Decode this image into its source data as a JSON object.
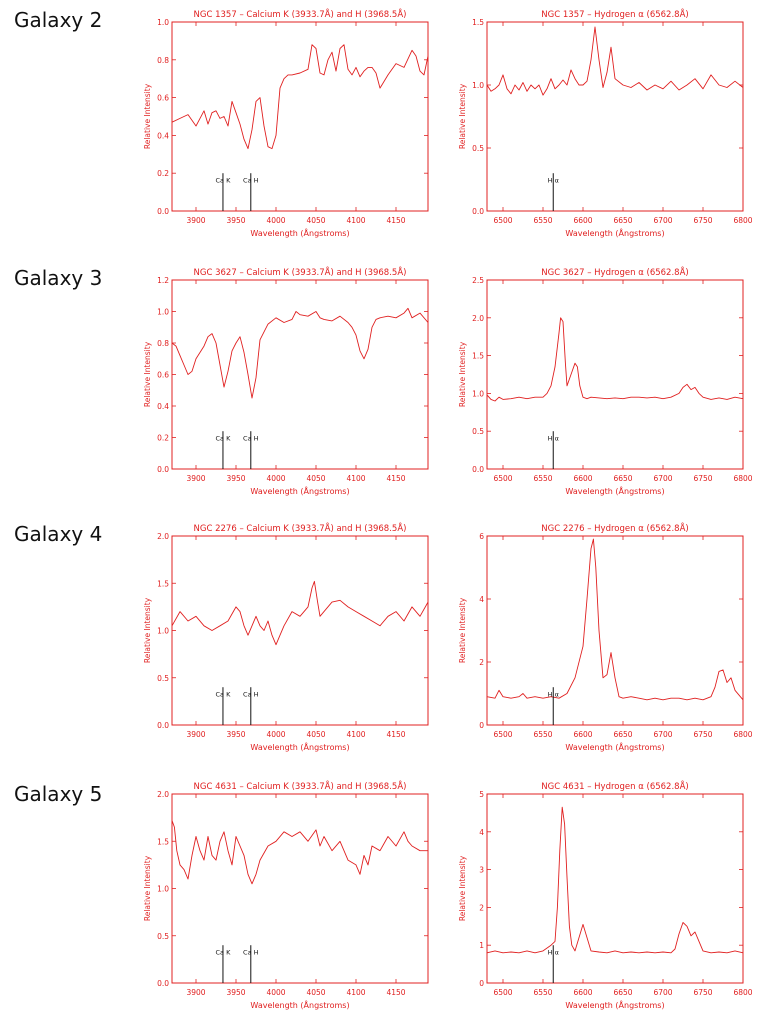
{
  "colors": {
    "spectrum": "#e02020",
    "marker": "#111111",
    "axis": "#e02020",
    "label": "#111111"
  },
  "rows": [
    {
      "galaxy_label": "Galaxy 2"
    },
    {
      "galaxy_label": "Galaxy 3"
    },
    {
      "galaxy_label": "Galaxy 4"
    },
    {
      "galaxy_label": "Galaxy 5"
    }
  ],
  "chart_data": [
    {
      "type": "line",
      "panel": "row1-left",
      "title": "NGC 1357 – Calcium K (3933.7Å) and H (3968.5Å)",
      "xlabel": "Wavelength (Ångstroms)",
      "ylabel": "Relative Intensity",
      "xlim": [
        3870,
        4190
      ],
      "ylim": [
        0.0,
        1.0
      ],
      "xticks": [
        3900,
        3950,
        4000,
        4050,
        4100,
        4150
      ],
      "yticks": [
        0.0,
        0.2,
        0.4,
        0.6,
        0.8,
        1.0
      ],
      "markers": [
        {
          "label": "Ca K",
          "x": 3933.7
        },
        {
          "label": "Ca H",
          "x": 3968.5
        }
      ],
      "series": [
        {
          "x": [
            3870,
            3880,
            3890,
            3900,
            3905,
            3910,
            3915,
            3920,
            3925,
            3930,
            3935,
            3940,
            3945,
            3950,
            3955,
            3960,
            3965,
            3970,
            3975,
            3980,
            3985,
            3990,
            3995,
            4000,
            4005,
            4010,
            4015,
            4020,
            4030,
            4040,
            4045,
            4050,
            4055,
            4060,
            4065,
            4070,
            4075,
            4080,
            4085,
            4090,
            4095,
            4100,
            4105,
            4110,
            4115,
            4120,
            4125,
            4130,
            4140,
            4150,
            4160,
            4170,
            4175,
            4180,
            4185,
            4190
          ],
          "y": [
            0.47,
            0.49,
            0.51,
            0.45,
            0.49,
            0.53,
            0.46,
            0.52,
            0.53,
            0.49,
            0.5,
            0.45,
            0.58,
            0.52,
            0.46,
            0.38,
            0.33,
            0.43,
            0.58,
            0.6,
            0.45,
            0.34,
            0.33,
            0.4,
            0.65,
            0.7,
            0.72,
            0.72,
            0.73,
            0.75,
            0.88,
            0.86,
            0.73,
            0.72,
            0.8,
            0.84,
            0.74,
            0.86,
            0.88,
            0.75,
            0.72,
            0.76,
            0.71,
            0.74,
            0.76,
            0.76,
            0.73,
            0.65,
            0.72,
            0.78,
            0.76,
            0.85,
            0.82,
            0.74,
            0.72,
            0.82
          ]
        }
      ]
    },
    {
      "type": "line",
      "panel": "row1-right",
      "title": "NGC 1357 – Hydrogen α (6562.8Å)",
      "xlabel": "Wavelength (Ångstroms)",
      "ylabel": "Relative Intensity",
      "xlim": [
        6480,
        6800
      ],
      "ylim": [
        0.0,
        1.5
      ],
      "xticks": [
        6500,
        6550,
        6600,
        6650,
        6700,
        6750,
        6800
      ],
      "yticks": [
        0.0,
        0.5,
        1.0,
        1.5
      ],
      "markers": [
        {
          "label": "H α",
          "x": 6562.8
        }
      ],
      "series": [
        {
          "x": [
            6480,
            6485,
            6490,
            6495,
            6500,
            6505,
            6510,
            6515,
            6520,
            6525,
            6530,
            6535,
            6540,
            6545,
            6550,
            6555,
            6560,
            6565,
            6570,
            6575,
            6580,
            6585,
            6590,
            6595,
            6600,
            6605,
            6610,
            6615,
            6620,
            6625,
            6630,
            6635,
            6640,
            6650,
            6660,
            6670,
            6680,
            6690,
            6700,
            6710,
            6720,
            6730,
            6740,
            6750,
            6760,
            6770,
            6780,
            6790,
            6800
          ],
          "y": [
            1.0,
            0.95,
            0.97,
            1.0,
            1.08,
            0.97,
            0.93,
            1.0,
            0.96,
            1.02,
            0.95,
            1.0,
            0.97,
            1.0,
            0.92,
            0.97,
            1.05,
            0.97,
            1.0,
            1.04,
            1.0,
            1.12,
            1.05,
            1.0,
            1.0,
            1.03,
            1.2,
            1.46,
            1.2,
            0.98,
            1.1,
            1.3,
            1.05,
            1.0,
            0.98,
            1.02,
            0.96,
            1.0,
            0.97,
            1.03,
            0.96,
            1.0,
            1.05,
            0.97,
            1.08,
            1.0,
            0.98,
            1.03,
            0.98
          ]
        }
      ]
    },
    {
      "type": "line",
      "panel": "row2-left",
      "title": "NGC 3627 – Calcium K (3933.7Å) and H (3968.5Å)",
      "xlabel": "Wavelength (Ångstroms)",
      "ylabel": "Relative Intensity",
      "xlim": [
        3870,
        4190
      ],
      "ylim": [
        0.0,
        1.2
      ],
      "xticks": [
        3900,
        3950,
        4000,
        4050,
        4100,
        4150
      ],
      "yticks": [
        0.0,
        0.2,
        0.4,
        0.6,
        0.8,
        1.0,
        1.2
      ],
      "markers": [
        {
          "label": "Ca K",
          "x": 3933.7
        },
        {
          "label": "Ca H",
          "x": 3968.5
        }
      ],
      "series": [
        {
          "x": [
            3870,
            3875,
            3880,
            3885,
            3890,
            3895,
            3900,
            3910,
            3915,
            3920,
            3925,
            3930,
            3935,
            3940,
            3945,
            3950,
            3955,
            3960,
            3965,
            3970,
            3975,
            3980,
            3990,
            4000,
            4010,
            4020,
            4025,
            4030,
            4040,
            4050,
            4055,
            4060,
            4070,
            4080,
            4090,
            4095,
            4100,
            4105,
            4110,
            4115,
            4120,
            4125,
            4130,
            4140,
            4150,
            4160,
            4165,
            4170,
            4180,
            4190
          ],
          "y": [
            0.8,
            0.78,
            0.72,
            0.66,
            0.6,
            0.62,
            0.7,
            0.78,
            0.84,
            0.86,
            0.8,
            0.66,
            0.52,
            0.62,
            0.75,
            0.8,
            0.84,
            0.74,
            0.6,
            0.45,
            0.58,
            0.82,
            0.92,
            0.96,
            0.93,
            0.95,
            1.0,
            0.98,
            0.97,
            1.0,
            0.96,
            0.95,
            0.94,
            0.97,
            0.93,
            0.9,
            0.85,
            0.75,
            0.7,
            0.76,
            0.9,
            0.95,
            0.96,
            0.97,
            0.96,
            0.99,
            1.02,
            0.96,
            0.99,
            0.93
          ]
        }
      ]
    },
    {
      "type": "line",
      "panel": "row2-right",
      "title": "NGC 3627 – Hydrogen α (6562.8Å)",
      "xlabel": "Wavelength (Ångstroms)",
      "ylabel": "Relative Intensity",
      "xlim": [
        6480,
        6800
      ],
      "ylim": [
        0.0,
        2.5
      ],
      "xticks": [
        6500,
        6550,
        6600,
        6650,
        6700,
        6750,
        6800
      ],
      "yticks": [
        0.0,
        0.5,
        1.0,
        1.5,
        2.0,
        2.5
      ],
      "markers": [
        {
          "label": "H α",
          "x": 6562.8
        }
      ],
      "series": [
        {
          "x": [
            6480,
            6485,
            6490,
            6495,
            6500,
            6510,
            6520,
            6530,
            6540,
            6550,
            6555,
            6560,
            6565,
            6570,
            6572,
            6575,
            6578,
            6580,
            6585,
            6590,
            6593,
            6596,
            6600,
            6605,
            6610,
            6620,
            6630,
            6640,
            6650,
            6660,
            6670,
            6680,
            6690,
            6700,
            6710,
            6720,
            6725,
            6730,
            6735,
            6740,
            6745,
            6750,
            6760,
            6770,
            6780,
            6790,
            6800
          ],
          "y": [
            0.98,
            0.92,
            0.9,
            0.95,
            0.92,
            0.93,
            0.95,
            0.93,
            0.95,
            0.95,
            1.0,
            1.1,
            1.35,
            1.8,
            2.0,
            1.95,
            1.4,
            1.1,
            1.25,
            1.4,
            1.35,
            1.1,
            0.95,
            0.93,
            0.95,
            0.94,
            0.93,
            0.94,
            0.93,
            0.95,
            0.95,
            0.94,
            0.95,
            0.93,
            0.95,
            1.0,
            1.08,
            1.12,
            1.05,
            1.08,
            1.0,
            0.95,
            0.92,
            0.94,
            0.92,
            0.95,
            0.93
          ]
        }
      ]
    },
    {
      "type": "line",
      "panel": "row3-left",
      "title": "NGC 2276 – Calcium K (3933.7Å) and H (3968.5Å)",
      "xlabel": "Wavelength (Ångstroms)",
      "ylabel": "Relative Intensity",
      "xlim": [
        3870,
        4190
      ],
      "ylim": [
        0.0,
        2.0
      ],
      "xticks": [
        3900,
        3950,
        4000,
        4050,
        4100,
        4150
      ],
      "yticks": [
        0.0,
        0.5,
        1.0,
        1.5,
        2.0
      ],
      "markers": [
        {
          "label": "Ca K",
          "x": 3933.7
        },
        {
          "label": "Ca H",
          "x": 3968.5
        }
      ],
      "series": [
        {
          "x": [
            3870,
            3880,
            3890,
            3900,
            3910,
            3920,
            3930,
            3940,
            3950,
            3955,
            3960,
            3965,
            3970,
            3975,
            3980,
            3985,
            3990,
            3995,
            4000,
            4005,
            4010,
            4020,
            4030,
            4040,
            4045,
            4048,
            4052,
            4055,
            4060,
            4070,
            4080,
            4090,
            4100,
            4110,
            4120,
            4130,
            4140,
            4150,
            4160,
            4170,
            4180,
            4190
          ],
          "y": [
            1.05,
            1.2,
            1.1,
            1.15,
            1.05,
            1.0,
            1.05,
            1.1,
            1.25,
            1.2,
            1.05,
            0.95,
            1.05,
            1.15,
            1.05,
            1.0,
            1.1,
            0.95,
            0.85,
            0.95,
            1.05,
            1.2,
            1.15,
            1.25,
            1.45,
            1.52,
            1.3,
            1.15,
            1.2,
            1.3,
            1.32,
            1.25,
            1.2,
            1.15,
            1.1,
            1.05,
            1.15,
            1.2,
            1.1,
            1.25,
            1.15,
            1.3
          ]
        }
      ]
    },
    {
      "type": "line",
      "panel": "row3-right",
      "title": "NGC 2276 – Hydrogen α (6562.8Å)",
      "xlabel": "Wavelength (Ångstroms)",
      "ylabel": "Relative Intensity",
      "xlim": [
        6480,
        6800
      ],
      "ylim": [
        0,
        6
      ],
      "xticks": [
        6500,
        6550,
        6600,
        6650,
        6700,
        6750,
        6800
      ],
      "yticks": [
        0,
        2,
        4,
        6
      ],
      "markers": [
        {
          "label": "H α",
          "x": 6562.8
        }
      ],
      "series": [
        {
          "x": [
            6480,
            6490,
            6495,
            6500,
            6510,
            6520,
            6525,
            6530,
            6540,
            6550,
            6560,
            6570,
            6580,
            6590,
            6600,
            6605,
            6610,
            6613,
            6616,
            6620,
            6625,
            6630,
            6635,
            6640,
            6645,
            6650,
            6660,
            6670,
            6680,
            6690,
            6700,
            6710,
            6720,
            6730,
            6740,
            6750,
            6760,
            6765,
            6770,
            6775,
            6780,
            6785,
            6790,
            6800
          ],
          "y": [
            0.9,
            0.85,
            1.1,
            0.9,
            0.85,
            0.9,
            1.0,
            0.85,
            0.9,
            0.85,
            0.9,
            0.85,
            1.0,
            1.5,
            2.5,
            4.0,
            5.6,
            5.9,
            5.0,
            3.0,
            1.5,
            1.6,
            2.3,
            1.5,
            0.9,
            0.85,
            0.9,
            0.85,
            0.8,
            0.85,
            0.8,
            0.85,
            0.85,
            0.8,
            0.85,
            0.8,
            0.9,
            1.2,
            1.7,
            1.75,
            1.35,
            1.5,
            1.1,
            0.8
          ]
        }
      ]
    },
    {
      "type": "line",
      "panel": "row4-left",
      "title": "NGC 4631 – Calcium K (3933.7Å) and H (3968.5Å)",
      "xlabel": "Wavelength (Ångstroms)",
      "ylabel": "Relative Intensity",
      "xlim": [
        3870,
        4190
      ],
      "ylim": [
        0.0,
        2.0
      ],
      "xticks": [
        3900,
        3950,
        4000,
        4050,
        4100,
        4150
      ],
      "yticks": [
        0.0,
        0.5,
        1.0,
        1.5,
        2.0
      ],
      "markers": [
        {
          "label": "Ca K",
          "x": 3933.7
        },
        {
          "label": "Ca H",
          "x": 3968.5
        }
      ],
      "series": [
        {
          "x": [
            3870,
            3873,
            3876,
            3880,
            3885,
            3890,
            3895,
            3900,
            3905,
            3910,
            3915,
            3920,
            3925,
            3930,
            3935,
            3940,
            3945,
            3950,
            3960,
            3965,
            3970,
            3975,
            3980,
            3990,
            4000,
            4010,
            4020,
            4030,
            4040,
            4050,
            4055,
            4060,
            4070,
            4080,
            4090,
            4100,
            4105,
            4110,
            4115,
            4120,
            4130,
            4140,
            4150,
            4160,
            4165,
            4170,
            4180,
            4190
          ],
          "y": [
            1.72,
            1.65,
            1.4,
            1.25,
            1.2,
            1.1,
            1.35,
            1.55,
            1.4,
            1.3,
            1.55,
            1.35,
            1.3,
            1.5,
            1.6,
            1.4,
            1.25,
            1.55,
            1.35,
            1.15,
            1.05,
            1.15,
            1.3,
            1.45,
            1.5,
            1.6,
            1.55,
            1.6,
            1.5,
            1.62,
            1.45,
            1.55,
            1.4,
            1.5,
            1.3,
            1.25,
            1.15,
            1.35,
            1.25,
            1.45,
            1.4,
            1.55,
            1.45,
            1.6,
            1.5,
            1.45,
            1.4,
            1.4
          ]
        }
      ]
    },
    {
      "type": "line",
      "panel": "row4-right",
      "title": "NGC 4631 – Hydrogen α (6562.8Å)",
      "xlabel": "Wavelength (Ångstroms)",
      "ylabel": "Relative Intensity",
      "xlim": [
        6480,
        6800
      ],
      "ylim": [
        0,
        5
      ],
      "xticks": [
        6500,
        6550,
        6600,
        6650,
        6700,
        6750,
        6800
      ],
      "yticks": [
        0,
        1,
        2,
        3,
        4,
        5
      ],
      "markers": [
        {
          "label": "H α",
          "x": 6562.8
        }
      ],
      "series": [
        {
          "x": [
            6480,
            6490,
            6500,
            6510,
            6520,
            6530,
            6540,
            6550,
            6560,
            6565,
            6568,
            6571,
            6574,
            6577,
            6580,
            6583,
            6586,
            6590,
            6595,
            6600,
            6605,
            6610,
            6620,
            6630,
            6640,
            6650,
            6660,
            6670,
            6680,
            6690,
            6700,
            6710,
            6715,
            6720,
            6725,
            6730,
            6735,
            6740,
            6745,
            6750,
            6760,
            6770,
            6780,
            6790,
            6800
          ],
          "y": [
            0.8,
            0.85,
            0.8,
            0.82,
            0.8,
            0.85,
            0.8,
            0.85,
            1.0,
            1.1,
            2.0,
            3.5,
            4.65,
            4.2,
            2.8,
            1.5,
            1.0,
            0.85,
            1.2,
            1.55,
            1.2,
            0.85,
            0.82,
            0.8,
            0.85,
            0.8,
            0.82,
            0.8,
            0.82,
            0.8,
            0.82,
            0.8,
            0.9,
            1.3,
            1.6,
            1.5,
            1.25,
            1.35,
            1.1,
            0.85,
            0.8,
            0.82,
            0.8,
            0.85,
            0.8
          ]
        }
      ]
    }
  ]
}
